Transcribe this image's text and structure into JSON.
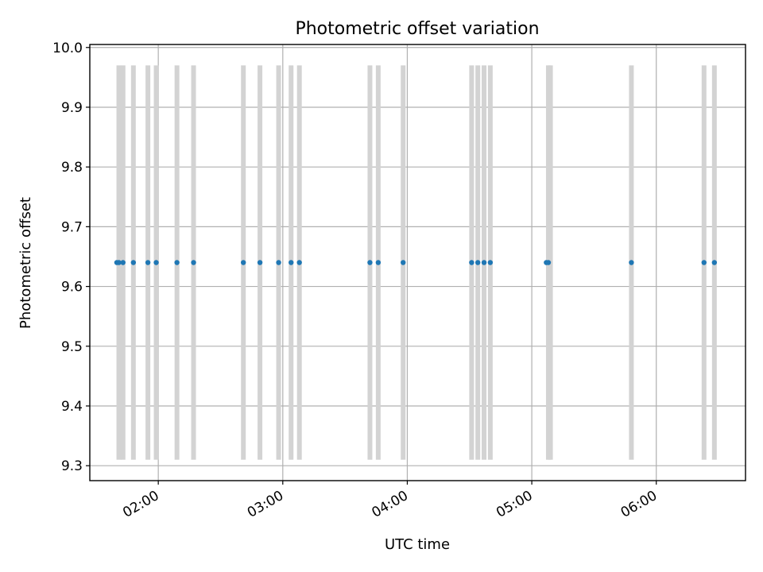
{
  "chart_data": {
    "type": "scatter",
    "title": "Photometric offset variation",
    "xlabel": "UTC time",
    "ylabel": "Photometric offset",
    "x_unit": "UTC time (HH:MM)",
    "xlim": [
      "01:27",
      "06:43"
    ],
    "ylim": [
      9.275,
      10.005
    ],
    "x_ticks": [
      "02:00",
      "03:00",
      "04:00",
      "05:00",
      "06:00"
    ],
    "y_ticks": [
      9.3,
      9.4,
      9.5,
      9.6,
      9.7,
      9.8,
      9.9,
      10.0
    ],
    "y_tick_labels": [
      "9.3",
      "9.4",
      "9.5",
      "9.6",
      "9.7",
      "9.8",
      "9.9",
      "10.0"
    ],
    "grid": true,
    "marker_color": "#1f77b4",
    "bar_color": "#d3d3d3",
    "exposure_ranges": {
      "y_range": [
        9.31,
        9.97
      ],
      "times": [
        "01:41",
        "01:43",
        "01:48",
        "01:55",
        "01:59",
        "02:09",
        "02:17",
        "02:41",
        "02:49",
        "02:58",
        "03:04",
        "03:08",
        "03:42",
        "03:46",
        "03:58",
        "04:31",
        "04:34",
        "04:37",
        "04:40",
        "05:08",
        "05:09",
        "05:48",
        "06:23",
        "06:28"
      ]
    },
    "series": [
      {
        "x": [
          "01:40",
          "01:41",
          "01:43",
          "01:48",
          "01:55",
          "01:59",
          "02:09",
          "02:17",
          "02:41",
          "02:49",
          "02:58",
          "03:04",
          "03:08",
          "03:42",
          "03:46",
          "03:58",
          "04:31",
          "04:34",
          "04:37",
          "04:40",
          "05:07",
          "05:08",
          "05:48",
          "06:23",
          "06:28"
        ],
        "y": [
          9.64,
          9.64,
          9.64,
          9.64,
          9.64,
          9.64,
          9.64,
          9.64,
          9.64,
          9.64,
          9.64,
          9.64,
          9.64,
          9.64,
          9.64,
          9.64,
          9.64,
          9.64,
          9.64,
          9.64,
          9.64,
          9.64,
          9.64,
          9.64,
          9.64
        ]
      }
    ]
  }
}
